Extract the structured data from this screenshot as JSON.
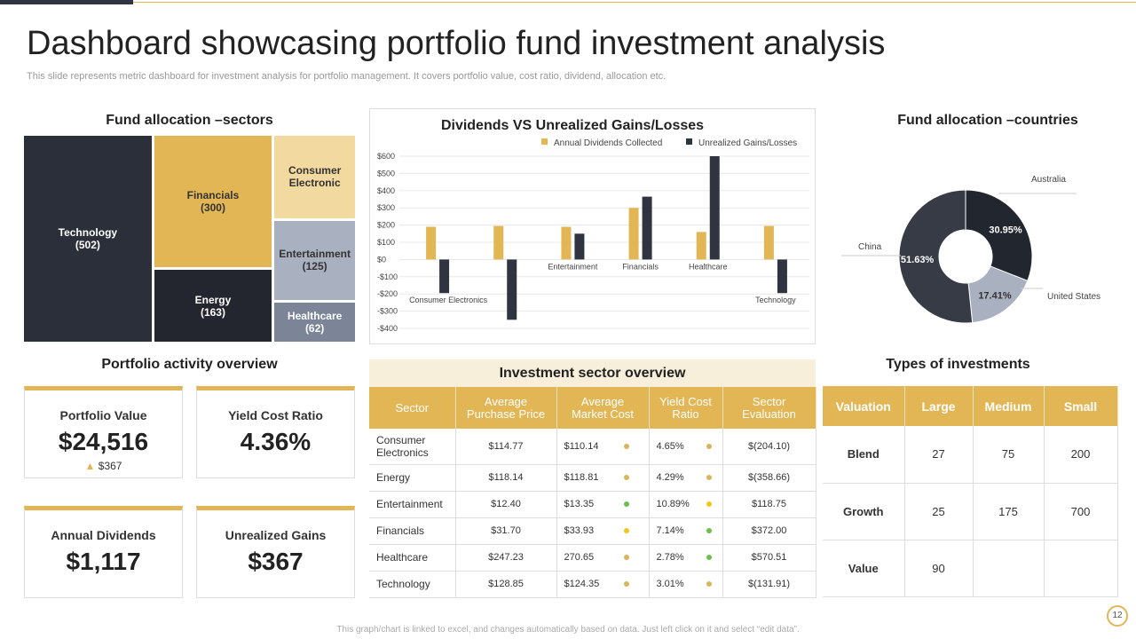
{
  "header": {
    "title": "Dashboard showcasing portfolio fund investment analysis",
    "subtitle": "This slide represents metric dashboard for investment analysis for portfolio management. It covers portfolio value, cost ratio, dividend, allocation etc."
  },
  "chart_data": [
    {
      "type": "treemap",
      "title": "Fund allocation –sectors",
      "categories": [
        "Technology",
        "Financials",
        "Consumer Electronic",
        "Energy",
        "Entertainment",
        "Healthcare"
      ],
      "values": [
        502,
        300,
        130,
        163,
        125,
        62
      ],
      "value_labels": [
        "(502)",
        "(300)",
        null,
        "(163)",
        "(125)",
        "(62)"
      ],
      "colors": [
        "#2a2f3a",
        "#e3b655",
        "#f2d9a0",
        "#23262e",
        "#a9b0bf",
        "#7b8597"
      ]
    },
    {
      "type": "bar",
      "title": "Dividends VS Unrealized Gains/Losses",
      "categories": [
        "Consumer Electronics",
        null,
        "Entertainment",
        "Financials",
        "Healthcare",
        "Technology"
      ],
      "series": [
        {
          "name": "Annual Dividends Collected",
          "color": "#e3b655",
          "values": [
            190,
            195,
            190,
            300,
            160,
            195
          ]
        },
        {
          "name": "Unrealized Gains/Losses",
          "color": "#2f3440",
          "values": [
            -195,
            -350,
            150,
            365,
            600,
            -195
          ]
        }
      ],
      "ylim": [
        -400,
        600
      ],
      "yticks": [
        {
          "value": -400,
          "label": "-$400"
        },
        {
          "value": -300,
          "label": "-$300"
        },
        {
          "value": -200,
          "label": "-$200"
        },
        {
          "value": -100,
          "label": "-$100"
        },
        {
          "value": 0,
          "label": "$0"
        },
        {
          "value": 100,
          "label": "$100"
        },
        {
          "value": 200,
          "label": "$200"
        },
        {
          "value": 300,
          "label": "$300"
        },
        {
          "value": 400,
          "label": "$400"
        },
        {
          "value": 500,
          "label": "$500"
        },
        {
          "value": 600,
          "label": "$600"
        }
      ],
      "grid": true
    },
    {
      "type": "pie",
      "title": "Fund allocation –countries",
      "categories": [
        "Australia",
        "United States",
        "China"
      ],
      "values": [
        30.95,
        17.41,
        51.63
      ],
      "value_labels": [
        "30.95%",
        "17.41%",
        "51.63%"
      ],
      "colors": [
        "#22262f",
        "#a9b0bf",
        "#363b46"
      ]
    }
  ],
  "activity": {
    "title": "Portfolio activity overview",
    "cards": [
      {
        "label": "Portfolio Value",
        "value": "$24,516",
        "change": "$367"
      },
      {
        "label": "Yield Cost Ratio",
        "value": "4.36%"
      },
      {
        "label": "Annual Dividends",
        "value": "$1,117"
      },
      {
        "label": "Unrealized Gains",
        "value": "$367"
      }
    ]
  },
  "sector_table": {
    "title": "Investment sector overview",
    "columns": [
      "Sector",
      "Average Purchase Price",
      "Average Market Cost",
      "Yield Cost Ratio",
      "Sector Evaluation"
    ],
    "rows": [
      [
        "Consumer Electronics",
        "$114.77",
        "$110.14",
        "4.65%",
        "$(204.10)"
      ],
      [
        "Energy",
        "$118.14",
        "$118.81",
        "4.29%",
        "$(358.66)"
      ],
      [
        "Entertainment",
        "$12.40",
        "$13.35",
        "10.89%",
        "$118.75"
      ],
      [
        "Financials",
        "$31.70",
        "$33.93",
        "7.14%",
        "$372.00"
      ],
      [
        "Healthcare",
        "$247.23",
        "270.65",
        "2.78%",
        "$570.51"
      ],
      [
        "Technology",
        "$128.85",
        "$124.35",
        "3.01%",
        "$(131.91)"
      ]
    ],
    "dot_colors": [
      [
        "#d9b45a",
        "#d9b45a"
      ],
      [
        "#d9b45a",
        "#d9b45a"
      ],
      [
        "#6cc04a",
        "#f5c518"
      ],
      [
        "#f5c518",
        "#6cc04a"
      ],
      [
        "#d9b45a",
        "#6cc04a"
      ],
      [
        "#d9b45a",
        "#d9b45a"
      ]
    ]
  },
  "types_table": {
    "title": "Types of investments",
    "columns": [
      "Valuation",
      "Large",
      "Medium",
      "Small"
    ],
    "rows": [
      [
        "Blend",
        27,
        75,
        200
      ],
      [
        "Growth",
        25,
        175,
        700
      ],
      [
        "Value",
        90,
        null,
        null
      ]
    ]
  },
  "footer": {
    "note": "This graph/chart is linked to excel, and changes automatically based on data. Just left click on it and select “edit data”.",
    "page": 12
  }
}
